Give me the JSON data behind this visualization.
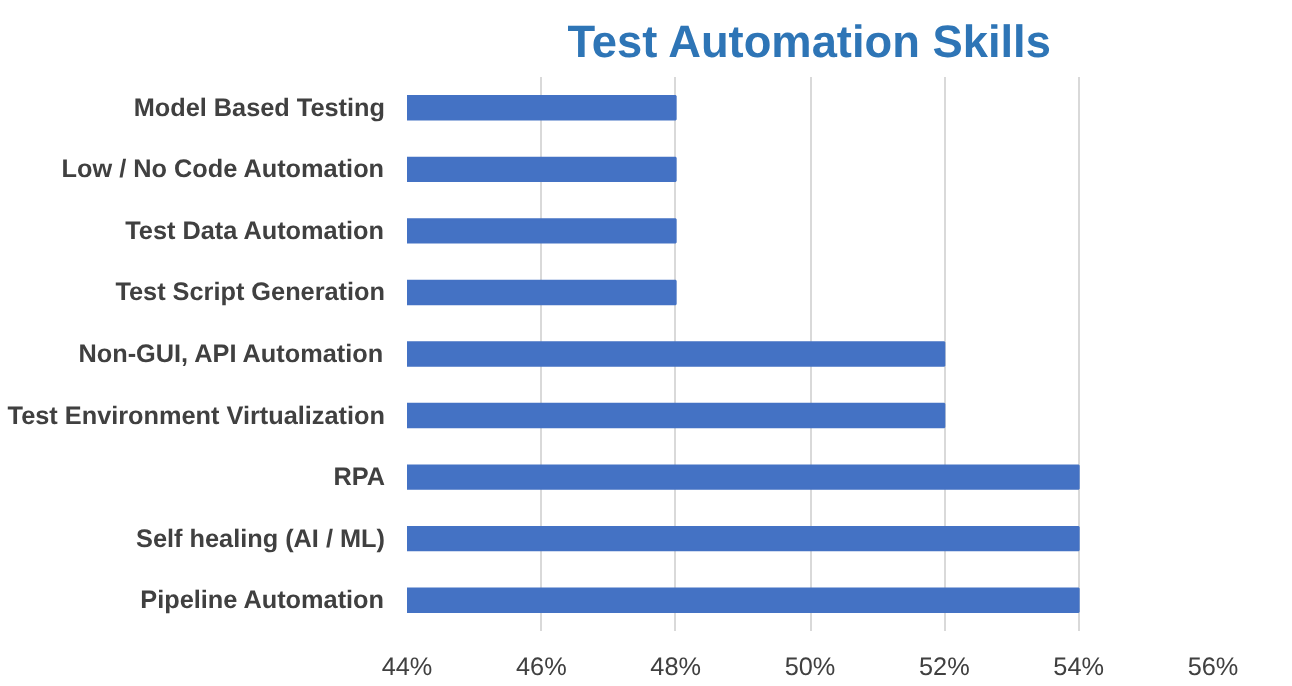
{
  "chart_data": {
    "type": "bar",
    "orientation": "horizontal",
    "title": "Test Automation Skills",
    "categories": [
      "Model Based Testing",
      "Low / No Code Automation",
      "Test Data Automation",
      "Test Script Generation",
      "Non-GUI, API Automation",
      "Test Environment Virtualization",
      "RPA",
      "Self healing (AI / ML)",
      "Pipeline Automation"
    ],
    "values": [
      48,
      48,
      48,
      48,
      52,
      52,
      54,
      54,
      54
    ],
    "color": "#4472c4",
    "xlim": [
      44,
      56
    ],
    "xticks": [
      {
        "value": 44,
        "label": "44%"
      },
      {
        "value": 46,
        "label": "46%"
      },
      {
        "value": 48,
        "label": "48%"
      },
      {
        "value": 50,
        "label": "50%"
      },
      {
        "value": 52,
        "label": "52%"
      },
      {
        "value": 54,
        "label": "54%"
      },
      {
        "value": 56,
        "label": "56%"
      }
    ],
    "grid": "x"
  }
}
